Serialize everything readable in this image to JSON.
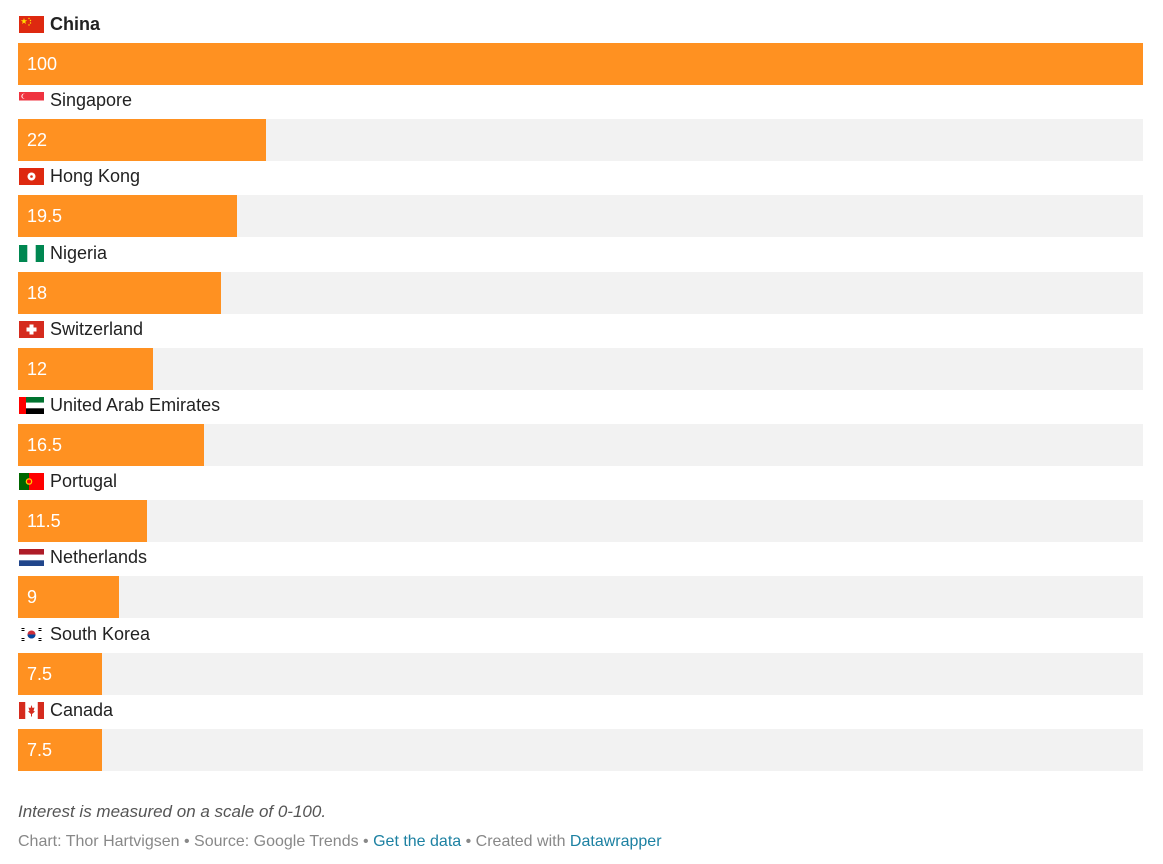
{
  "chart_data": {
    "type": "bar",
    "orientation": "horizontal",
    "xlim": [
      0,
      100
    ],
    "bar_color": "#ff9121",
    "background_color": "#f2f2f2",
    "rows": [
      {
        "label": "China",
        "value": 100,
        "value_label": "100",
        "flag": "china-flag-icon",
        "bold": true
      },
      {
        "label": "Singapore",
        "value": 22,
        "value_label": "22",
        "flag": "singapore-flag-icon"
      },
      {
        "label": "Hong Kong",
        "value": 19.5,
        "value_label": "19.5",
        "flag": "hong-kong-flag-icon"
      },
      {
        "label": "Nigeria",
        "value": 18,
        "value_label": "18",
        "flag": "nigeria-flag-icon"
      },
      {
        "label": "Switzerland",
        "value": 12,
        "value_label": "12",
        "flag": "switzerland-flag-icon"
      },
      {
        "label": "United Arab Emirates",
        "value": 16.5,
        "value_label": "16.5",
        "flag": "uae-flag-icon"
      },
      {
        "label": "Portugal",
        "value": 11.5,
        "value_label": "11.5",
        "flag": "portugal-flag-icon"
      },
      {
        "label": "Netherlands",
        "value": 9,
        "value_label": "9",
        "flag": "netherlands-flag-icon"
      },
      {
        "label": "South Korea",
        "value": 7.5,
        "value_label": "7.5",
        "flag": "south-korea-flag-icon"
      },
      {
        "label": "Canada",
        "value": 7.5,
        "value_label": "7.5",
        "flag": "canada-flag-icon"
      }
    ]
  },
  "notes": {
    "scale_note": "Interest is measured on a scale of 0-100."
  },
  "footer": {
    "chart_credit": "Chart: Thor Hartvigsen",
    "separator": " • ",
    "source": "Source: Google Trends",
    "get_data_link": "Get the data",
    "created_with": "Created with ",
    "datawrapper_link": "Datawrapper",
    "link_color": "#1d81a2"
  }
}
